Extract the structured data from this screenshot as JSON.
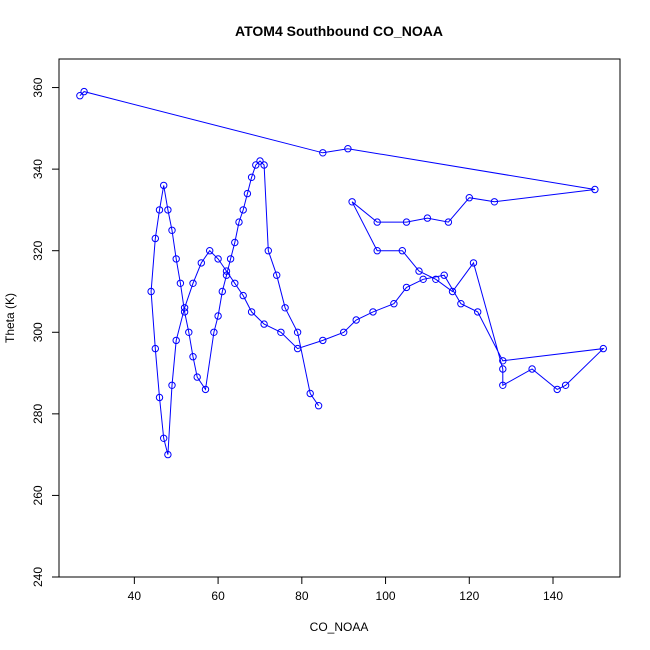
{
  "chart_data": {
    "type": "line",
    "title": "ATOM4 Southbound CO_NOAA",
    "xlabel": "CO_NOAA",
    "ylabel": "Theta (K)",
    "xlim": [
      22,
      156
    ],
    "ylim": [
      240,
      367
    ],
    "xticks": [
      40,
      60,
      80,
      100,
      120,
      140
    ],
    "yticks": [
      240,
      260,
      280,
      300,
      320,
      340,
      360
    ],
    "grid": false,
    "legend": "none",
    "series_color": "#0000ff",
    "markers": "open-circle",
    "series": [
      {
        "x": [
          27,
          28,
          85,
          91,
          150,
          126,
          120,
          115,
          110,
          105,
          98,
          92,
          98,
          104,
          108,
          112,
          116,
          121,
          128,
          128,
          135,
          141,
          143,
          152,
          128,
          122,
          118,
          114,
          109,
          105,
          102,
          97,
          93,
          90,
          85,
          79,
          75,
          71,
          68,
          66,
          64,
          62,
          60,
          58,
          56,
          54,
          52,
          50,
          49,
          48,
          47,
          46,
          45,
          44,
          45,
          46,
          47,
          48,
          49,
          50,
          51,
          52,
          53,
          54,
          55,
          57,
          59,
          60,
          61,
          62,
          63,
          64,
          65,
          66,
          67,
          68,
          69,
          70,
          71,
          72,
          74,
          76,
          79,
          82,
          84
        ],
        "y": [
          358,
          359,
          344,
          345,
          335,
          332,
          333,
          327,
          328,
          327,
          327,
          332,
          320,
          320,
          315,
          313,
          310,
          317,
          291,
          287,
          291,
          286,
          287,
          296,
          293,
          305,
          307,
          314,
          313,
          311,
          307,
          305,
          303,
          300,
          298,
          296,
          300,
          302,
          305,
          309,
          312,
          315,
          318,
          320,
          317,
          312,
          306,
          298,
          287,
          270,
          274,
          284,
          296,
          310,
          323,
          330,
          336,
          330,
          325,
          318,
          312,
          305,
          300,
          294,
          289,
          286,
          300,
          304,
          310,
          314,
          318,
          322,
          327,
          330,
          334,
          338,
          341,
          342,
          341,
          320,
          314,
          306,
          300,
          285,
          282
        ]
      }
    ]
  }
}
